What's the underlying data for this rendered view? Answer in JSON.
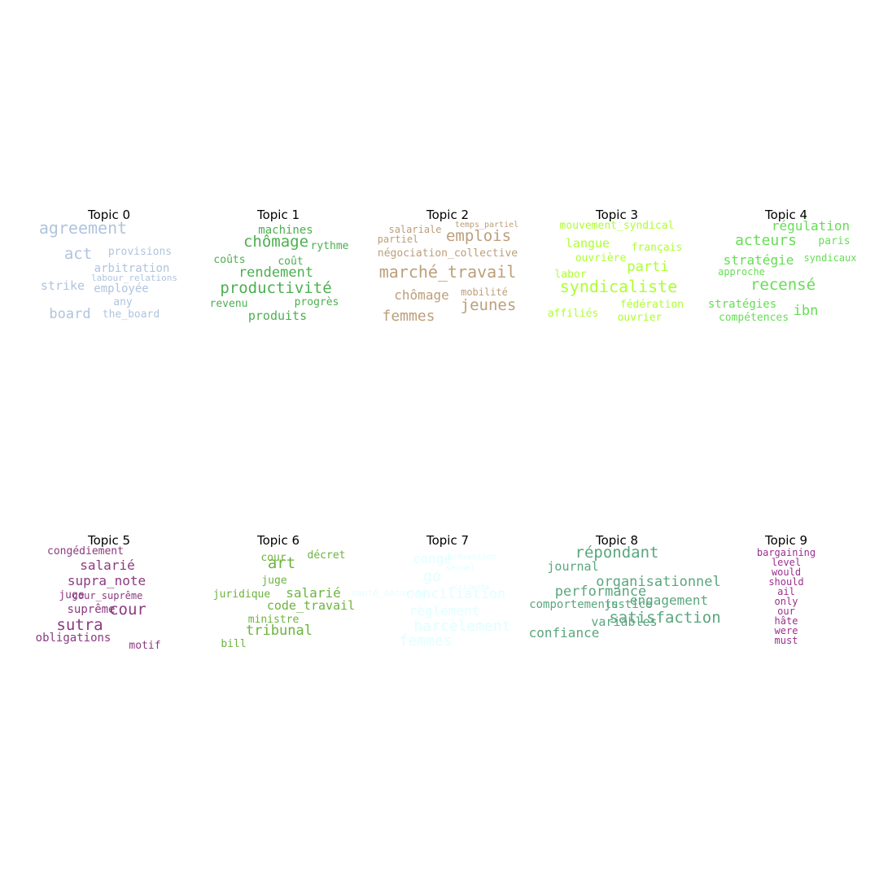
{
  "chart_data": [
    {
      "type": "wordcloud",
      "title": "Topic 0",
      "color": "#b0c4de",
      "words": [
        {
          "text": "agreement"
        },
        {
          "text": "act"
        },
        {
          "text": "provisions"
        },
        {
          "text": "arbitration"
        },
        {
          "text": "labour_relations"
        },
        {
          "text": "strike"
        },
        {
          "text": "employée"
        },
        {
          "text": "any"
        },
        {
          "text": "board"
        },
        {
          "text": "the_board"
        }
      ]
    },
    {
      "type": "wordcloud",
      "title": "Topic 1",
      "color": "#4caf50",
      "words": [
        {
          "text": "machines"
        },
        {
          "text": "chômage"
        },
        {
          "text": "rythme"
        },
        {
          "text": "coûts"
        },
        {
          "text": "coût"
        },
        {
          "text": "rendement"
        },
        {
          "text": "productivité"
        },
        {
          "text": "revenu"
        },
        {
          "text": "progrès"
        },
        {
          "text": "produits"
        }
      ]
    },
    {
      "type": "wordcloud",
      "title": "Topic 2",
      "color": "#bc9f7a",
      "words": [
        {
          "text": "salariale"
        },
        {
          "text": "temps_partiel"
        },
        {
          "text": "partiel"
        },
        {
          "text": "emplois"
        },
        {
          "text": "négociation_collective"
        },
        {
          "text": "marché_travail"
        },
        {
          "text": "chômage"
        },
        {
          "text": "mobilité"
        },
        {
          "text": "jeunes"
        },
        {
          "text": "femmes"
        }
      ]
    },
    {
      "type": "wordcloud",
      "title": "Topic 3",
      "color": "#adff2f",
      "words": [
        {
          "text": "mouvement_syndical"
        },
        {
          "text": "langue"
        },
        {
          "text": "français"
        },
        {
          "text": "ouvrière"
        },
        {
          "text": "labor"
        },
        {
          "text": "parti"
        },
        {
          "text": "syndicaliste"
        },
        {
          "text": "fédération"
        },
        {
          "text": "affiliés"
        },
        {
          "text": "ouvrier"
        }
      ]
    },
    {
      "type": "wordcloud",
      "title": "Topic 4",
      "color": "#66dd55",
      "words": [
        {
          "text": "régulation"
        },
        {
          "text": "acteurs"
        },
        {
          "text": "paris"
        },
        {
          "text": "stratégie"
        },
        {
          "text": "syndicaux"
        },
        {
          "text": "approche"
        },
        {
          "text": "recensé"
        },
        {
          "text": "stratégies"
        },
        {
          "text": "ibn"
        },
        {
          "text": "compétences"
        }
      ]
    },
    {
      "type": "wordcloud",
      "title": "Topic 5",
      "color": "#8b3a7f",
      "words": [
        {
          "text": "congédiement"
        },
        {
          "text": "salarié"
        },
        {
          "text": "supra_note"
        },
        {
          "text": "juge"
        },
        {
          "text": "cour_suprême"
        },
        {
          "text": "suprême"
        },
        {
          "text": "cour"
        },
        {
          "text": "sutra"
        },
        {
          "text": "obligations"
        },
        {
          "text": "motif"
        }
      ]
    },
    {
      "type": "wordcloud",
      "title": "Topic 6",
      "color": "#6db33f",
      "words": [
        {
          "text": "cour"
        },
        {
          "text": "décret"
        },
        {
          "text": "art"
        },
        {
          "text": "juge"
        },
        {
          "text": "juridique"
        },
        {
          "text": "salarié"
        },
        {
          "text": "code_travail"
        },
        {
          "text": "ministre"
        },
        {
          "text": "tribunal"
        },
        {
          "text": "bill"
        }
      ]
    },
    {
      "type": "wordcloud",
      "title": "Topic 7",
      "color": "#e0ffff",
      "words": [
        {
          "text": "prévention"
        },
        {
          "text": "congé"
        },
        {
          "text": "sexuel"
        },
        {
          "text": "go"
        },
        {
          "text": "accidents"
        },
        {
          "text": "santé_sécurité"
        },
        {
          "text": "conciliation"
        },
        {
          "text": "règlement"
        },
        {
          "text": "harcèlement"
        },
        {
          "text": "femmes"
        }
      ]
    },
    {
      "type": "wordcloud",
      "title": "Topic 8",
      "color": "#5aa67f",
      "words": [
        {
          "text": "répondant"
        },
        {
          "text": "journal"
        },
        {
          "text": "organisationnel"
        },
        {
          "text": "performance"
        },
        {
          "text": "comportements"
        },
        {
          "text": "justice"
        },
        {
          "text": "engagement"
        },
        {
          "text": "satisfaction"
        },
        {
          "text": "variables"
        },
        {
          "text": "confiance"
        }
      ]
    },
    {
      "type": "wordcloud",
      "title": "Topic 9",
      "color": "#9b2f8f",
      "words": [
        {
          "text": "bargaining"
        },
        {
          "text": "level"
        },
        {
          "text": "would"
        },
        {
          "text": "should"
        },
        {
          "text": "ail"
        },
        {
          "text": "only"
        },
        {
          "text": "our"
        },
        {
          "text": "hâte"
        },
        {
          "text": "were"
        },
        {
          "text": "must"
        }
      ]
    }
  ]
}
